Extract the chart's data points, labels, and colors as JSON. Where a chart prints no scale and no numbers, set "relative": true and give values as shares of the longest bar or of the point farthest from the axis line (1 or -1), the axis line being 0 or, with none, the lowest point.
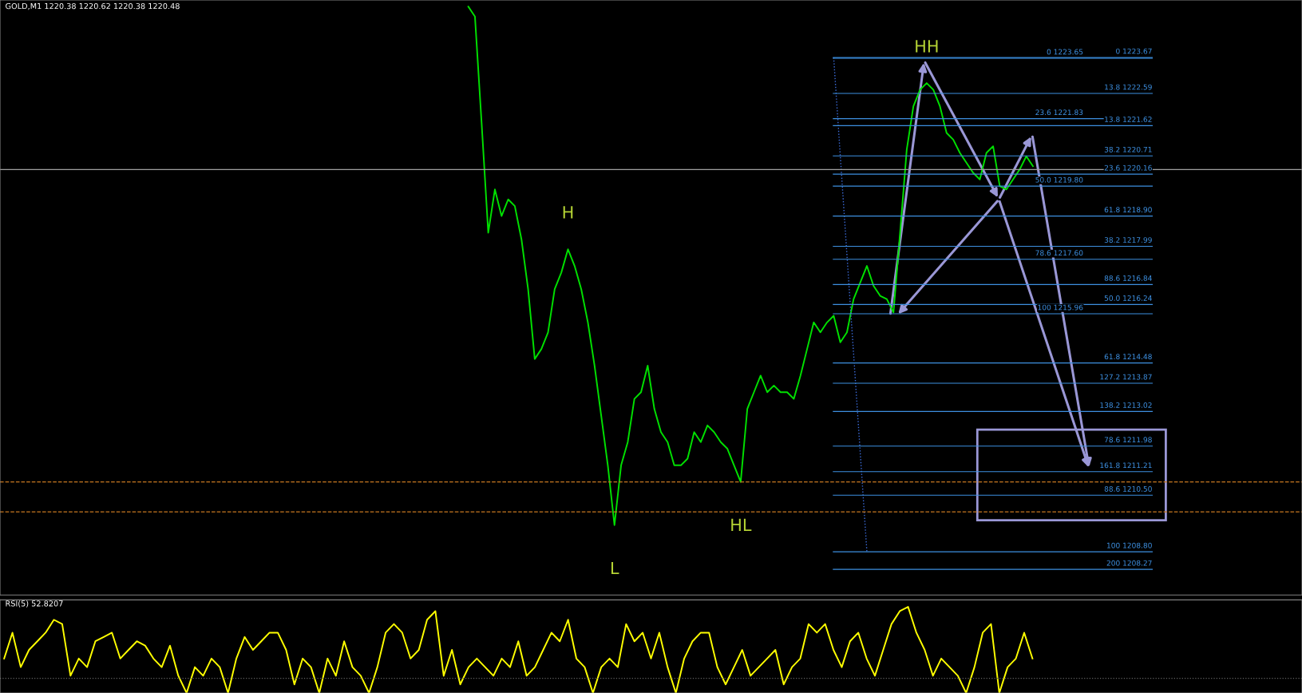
{
  "chart_data": [
    {
      "type": "line",
      "title": "GOLD,M1 1220.38 1220.62 1220.38 1220.48",
      "ylim": [
        1207.5,
        1225.4
      ],
      "categories": [
        null,
        null,
        null,
        null,
        null,
        null,
        null,
        null,
        null,
        null,
        null,
        null,
        null,
        null,
        null,
        null,
        null,
        null,
        null,
        null,
        null,
        null,
        null,
        null,
        null,
        null,
        null,
        null,
        null,
        null,
        null,
        null,
        null,
        null,
        null,
        null,
        null,
        null,
        null,
        null,
        null,
        null,
        null,
        null,
        null,
        null,
        null,
        null,
        null,
        null,
        null,
        null,
        null,
        null,
        null,
        null,
        null,
        null,
        null,
        null,
        null,
        null,
        null,
        null,
        null,
        null,
        null,
        null,
        null,
        null,
        null,
        null,
        null,
        null,
        null,
        null,
        null,
        null,
        null,
        null,
        null,
        null,
        null,
        null,
        null,
        null,
        null,
        null,
        null,
        null,
        null,
        null,
        null,
        null,
        null,
        null,
        null,
        null,
        null,
        null,
        null,
        null,
        null,
        null,
        null,
        null,
        null,
        null,
        null,
        null,
        null,
        null,
        null,
        null,
        null,
        null,
        null,
        null,
        null,
        null,
        null,
        null,
        null,
        null,
        null,
        null,
        null,
        null,
        null,
        null,
        null,
        null,
        null,
        null,
        null,
        null,
        null,
        null,
        null,
        null,
        null,
        null,
        null,
        null,
        null,
        null,
        null,
        null,
        null,
        null,
        null,
        null,
        null,
        null,
        null,
        null,
        null,
        null,
        null,
        null,
        null,
        null,
        null,
        null,
        null,
        null,
        null,
        null,
        null,
        null,
        null,
        null,
        null,
        null,
        null,
        null,
        null,
        null,
        null,
        null,
        null,
        null,
        null,
        null,
        null,
        null,
        null,
        null,
        null,
        null,
        null,
        null,
        null,
        null,
        null,
        null
      ],
      "series": [
        {
          "color": "#00e000",
          "values": [
            null,
            null,
            null,
            null,
            null,
            null,
            null,
            null,
            null,
            null,
            null,
            null,
            null,
            null,
            null,
            null,
            null,
            null,
            null,
            null,
            null,
            null,
            null,
            null,
            null,
            null,
            null,
            null,
            null,
            null,
            null,
            null,
            null,
            null,
            null,
            null,
            null,
            null,
            null,
            null,
            null,
            null,
            null,
            null,
            null,
            null,
            null,
            null,
            null,
            null,
            null,
            null,
            null,
            null,
            null,
            null,
            null,
            null,
            null,
            null,
            null,
            null,
            null,
            null,
            null,
            null,
            null,
            null,
            null,
            null,
            1225.2,
            1224.9,
            1221.7,
            1218.4,
            1219.7,
            1218.9,
            1219.4,
            1219.2,
            1218.2,
            1216.7,
            1214.6,
            1214.9,
            1215.4,
            1216.7,
            1217.2,
            1217.9,
            1217.4,
            1216.7,
            1215.7,
            1214.4,
            1212.9,
            1211.4,
            1209.6,
            1211.4,
            1212.1,
            1213.4,
            1213.6,
            1214.4,
            1213.1,
            1212.4,
            1212.1,
            1211.4,
            1211.4,
            1211.6,
            1212.4,
            1212.1,
            1212.6,
            1212.4,
            1212.1,
            1211.9,
            1211.4,
            1210.9,
            1213.1,
            1213.6,
            1214.1,
            1213.6,
            1213.8,
            1213.6,
            1213.6,
            1213.4,
            1214.1,
            1214.9,
            1215.7,
            1215.4,
            1215.7,
            1215.9,
            1215.1,
            1215.4,
            1216.4,
            1216.9,
            1217.4,
            1216.8,
            1216.5,
            1216.4,
            1216.0,
            1218.4,
            1220.9,
            1222.2,
            1222.7,
            1222.9,
            1222.7,
            1222.2,
            1221.4,
            1221.2,
            1220.8,
            1220.5,
            1220.2,
            1220.0,
            1220.8,
            1221.0,
            1219.8,
            1219.7,
            1220.0,
            1220.3,
            1220.7,
            1220.4,
            null,
            null,
            null,
            null,
            null,
            null,
            null,
            null,
            null,
            null,
            null,
            null,
            null,
            null,
            null,
            null,
            null,
            null,
            null,
            null,
            null,
            null,
            null,
            null,
            null,
            null,
            null,
            null,
            null,
            null,
            null,
            null,
            null,
            null,
            null,
            null,
            null,
            null,
            null,
            null
          ],
          "value_labels": [
            null,
            null,
            null,
            null,
            null,
            null,
            null,
            null,
            null,
            null,
            null,
            null,
            null,
            null,
            null,
            null,
            null,
            null,
            null,
            null,
            null,
            null,
            null,
            null,
            null,
            null,
            null,
            null,
            null,
            null,
            null,
            null,
            null,
            null,
            null,
            null,
            null,
            null,
            null,
            null,
            null,
            null,
            null,
            null,
            null,
            null,
            null,
            null,
            null,
            null,
            null,
            null,
            null,
            null,
            null,
            null,
            null,
            null,
            null,
            null,
            null,
            null,
            null,
            null,
            null,
            null,
            null,
            null,
            null,
            null,
            null,
            null,
            null,
            null,
            null,
            null,
            null,
            null,
            null,
            null,
            null,
            null,
            null,
            null,
            null,
            "H",
            null,
            null,
            null,
            null,
            null,
            null,
            "L",
            null,
            null,
            null,
            null,
            null,
            null,
            null,
            null,
            null,
            null,
            null,
            null,
            null,
            null,
            null,
            null,
            null,
            null,
            "HL",
            null,
            null,
            null,
            null,
            null,
            null,
            null,
            null,
            null,
            null,
            null,
            null,
            null,
            null,
            null,
            null,
            null,
            null,
            null,
            null,
            null,
            null,
            null,
            null,
            null,
            null,
            null,
            "HH",
            null,
            null,
            null,
            null,
            null,
            null,
            null,
            null,
            null,
            null,
            null,
            null,
            null,
            null,
            null,
            null,
            null,
            null,
            null,
            null,
            null,
            null,
            null,
            null,
            null,
            null,
            null,
            null,
            null,
            null,
            null,
            null,
            null,
            null,
            null,
            null,
            null,
            null,
            null,
            null,
            null,
            null,
            null,
            null,
            null,
            null,
            null,
            null,
            null,
            null,
            null,
            null,
            null,
            null,
            null,
            null
          ]
        },
        {
          "color": "#3d6fe0",
          "line_style": "dotted",
          "values": [
            null,
            null,
            null,
            null,
            null,
            null,
            null,
            null,
            null,
            null,
            null,
            null,
            null,
            null,
            null,
            null,
            null,
            null,
            null,
            null,
            null,
            null,
            null,
            null,
            null,
            null,
            null,
            null,
            null,
            null,
            null,
            null,
            null,
            null,
            null,
            null,
            null,
            null,
            null,
            null,
            null,
            null,
            null,
            null,
            null,
            null,
            null,
            null,
            null,
            null,
            null,
            null,
            null,
            null,
            null,
            null,
            null,
            null,
            null,
            null,
            null,
            null,
            null,
            null,
            null,
            null,
            null,
            null,
            null,
            null,
            null,
            null,
            null,
            null,
            null,
            null,
            null,
            null,
            null,
            null,
            null,
            null,
            null,
            null,
            null,
            null,
            null,
            null,
            null,
            null,
            null,
            null,
            null,
            null,
            null,
            null,
            null,
            null,
            null,
            null,
            null,
            null,
            null,
            null,
            null,
            null,
            null,
            null,
            null,
            null,
            null,
            null,
            null,
            null,
            null,
            null,
            null,
            null,
            null,
            null,
            null,
            null,
            null,
            null,
            null,
            1223.67,
            null,
            null,
            null,
            null,
            1208.8,
            null,
            null,
            null,
            null,
            null,
            null,
            null,
            null,
            null,
            null,
            null,
            null,
            null,
            null,
            null,
            null,
            null,
            null,
            null,
            null,
            null,
            null,
            null,
            null,
            null,
            null,
            null,
            null,
            null,
            null,
            null,
            null,
            null,
            null,
            null,
            null,
            null,
            null,
            null,
            null,
            null,
            null,
            null,
            null,
            null,
            null,
            null,
            null,
            null,
            null,
            null,
            null,
            null,
            null,
            null,
            null,
            null,
            null,
            null,
            null,
            null,
            null,
            null,
            null,
            null
          ]
        }
      ],
      "ref_lines": [
        {
          "axis": "y",
          "value": 1220.3,
          "color": "#a0a0a0",
          "line_style": "solid"
        },
        {
          "axis": "y",
          "value": 1210.9,
          "color": "#c87820",
          "line_style": "dashed"
        },
        {
          "axis": "y",
          "value": 1210.0,
          "color": "#c87820",
          "line_style": "dashed"
        },
        {
          "axis": "y",
          "value": 1223.67,
          "label": "0 1223.67",
          "color": "#3d8fe0",
          "line_style": "solid"
        },
        {
          "axis": "y",
          "value": 1221.62,
          "label": "13.8 1221.62",
          "color": "#3d8fe0",
          "line_style": "solid"
        },
        {
          "axis": "y",
          "value": 1220.16,
          "label": "23.6 1220.16",
          "color": "#3d8fe0",
          "line_style": "solid"
        },
        {
          "axis": "y",
          "value": 1217.99,
          "label": "38.2 1217.99",
          "color": "#3d8fe0",
          "line_style": "solid"
        },
        {
          "axis": "y",
          "value": 1216.24,
          "label": "50.0 1216.24",
          "color": "#3d8fe0",
          "line_style": "solid"
        },
        {
          "axis": "y",
          "value": 1214.48,
          "label": "61.8 1214.48",
          "color": "#3d8fe0",
          "line_style": "solid"
        },
        {
          "axis": "y",
          "value": 1211.98,
          "label": "78.6 1211.98",
          "color": "#3d8fe0",
          "line_style": "solid"
        },
        {
          "axis": "y",
          "value": 1210.5,
          "label": "88.6 1210.50",
          "color": "#3d8fe0",
          "line_style": "solid"
        },
        {
          "axis": "y",
          "value": 1208.8,
          "label": "100 1208.80",
          "color": "#3d8fe0",
          "line_style": "solid"
        },
        {
          "axis": "y",
          "value": 1223.65,
          "label": "0 1223.65",
          "color": "#3d8fe0",
          "line_style": "solid"
        },
        {
          "axis": "y",
          "value": 1222.59,
          "label": "13.8 1222.59",
          "color": "#3d8fe0",
          "line_style": "solid"
        },
        {
          "axis": "y",
          "value": 1221.83,
          "label": "23.6 1221.83",
          "color": "#3d8fe0",
          "line_style": "solid"
        },
        {
          "axis": "y",
          "value": 1220.71,
          "label": "38.2 1220.71",
          "color": "#3d8fe0",
          "line_style": "solid"
        },
        {
          "axis": "y",
          "value": 1219.8,
          "label": "50.0 1219.80",
          "color": "#3d8fe0",
          "line_style": "solid"
        },
        {
          "axis": "y",
          "value": 1218.9,
          "label": "61.8 1218.90",
          "color": "#3d8fe0",
          "line_style": "solid"
        },
        {
          "axis": "y",
          "value": 1217.6,
          "label": "78.6 1217.60",
          "color": "#3d8fe0",
          "line_style": "solid"
        },
        {
          "axis": "y",
          "value": 1216.84,
          "label": "88.6 1216.84",
          "color": "#3d8fe0",
          "line_style": "solid"
        },
        {
          "axis": "y",
          "value": 1215.96,
          "label": "100 1215.96",
          "color": "#3d8fe0",
          "line_style": "solid"
        },
        {
          "axis": "y",
          "value": 1213.87,
          "label": "127.2 1213.87",
          "color": "#3d8fe0",
          "line_style": "solid"
        },
        {
          "axis": "y",
          "value": 1213.02,
          "label": "138.2 1213.02",
          "color": "#3d8fe0",
          "line_style": "solid"
        },
        {
          "axis": "y",
          "value": 1211.21,
          "label": "161.8 1211.21",
          "color": "#3d8fe0",
          "line_style": "solid"
        },
        {
          "axis": "y",
          "value": 1208.27,
          "label": "200 1208.27",
          "color": "#3d8fe0",
          "line_style": "solid"
        }
      ]
    },
    {
      "type": "line",
      "title": "RSI(5) 52.8207",
      "relative": true,
      "categories": [
        null,
        null,
        null,
        null,
        null,
        null,
        null,
        null,
        null,
        null,
        null,
        null,
        null,
        null,
        null,
        null,
        null,
        null,
        null,
        null,
        null,
        null,
        null,
        null,
        null,
        null,
        null,
        null,
        null,
        null,
        null,
        null,
        null,
        null,
        null,
        null,
        null,
        null,
        null,
        null,
        null,
        null,
        null,
        null,
        null,
        null,
        null,
        null,
        null,
        null,
        null,
        null,
        null,
        null,
        null,
        null,
        null,
        null,
        null,
        null,
        null,
        null,
        null,
        null,
        null,
        null,
        null,
        null,
        null,
        null,
        null,
        null,
        null,
        null,
        null,
        null,
        null,
        null,
        null,
        null,
        null,
        null,
        null,
        null,
        null,
        null,
        null,
        null,
        null,
        null,
        null,
        null,
        null,
        null,
        null,
        null,
        null,
        null,
        null,
        null,
        null,
        null,
        null,
        null,
        null,
        null,
        null,
        null,
        null,
        null,
        null,
        null,
        null,
        null,
        null,
        null,
        null,
        null,
        null,
        null,
        null,
        null,
        null,
        null,
        null,
        null,
        null,
        null,
        null,
        null,
        null,
        null,
        null,
        null,
        null,
        null,
        null,
        null,
        null,
        null,
        null,
        null,
        null,
        null,
        null,
        null,
        null,
        null,
        null,
        null,
        null,
        null,
        null,
        null,
        null,
        null,
        null
      ],
      "series": [
        {
          "color": "#ffff00",
          "values": [
            0.4,
            0.7,
            0.3,
            0.5,
            0.6,
            0.7,
            0.85,
            0.8,
            0.2,
            0.4,
            0.3,
            0.6,
            0.65,
            0.7,
            0.4,
            0.5,
            0.6,
            0.55,
            0.4,
            0.3,
            0.55,
            0.2,
            0.0,
            0.3,
            0.2,
            0.4,
            0.3,
            0.0,
            0.4,
            0.65,
            0.5,
            0.6,
            0.7,
            0.7,
            0.5,
            0.1,
            0.4,
            0.3,
            0.0,
            0.4,
            0.2,
            0.6,
            0.3,
            0.2,
            0.0,
            0.3,
            0.7,
            0.8,
            0.7,
            0.4,
            0.5,
            0.85,
            0.95,
            0.2,
            0.5,
            0.1,
            0.3,
            0.4,
            0.3,
            0.2,
            0.4,
            0.3,
            0.6,
            0.2,
            0.3,
            0.5,
            0.7,
            0.6,
            0.85,
            0.4,
            0.3,
            0.0,
            0.3,
            0.4,
            0.3,
            0.8,
            0.6,
            0.7,
            0.4,
            0.7,
            0.3,
            0.0,
            0.4,
            0.6,
            0.7,
            0.7,
            0.3,
            0.1,
            0.3,
            0.5,
            0.2,
            0.3,
            0.4,
            0.5,
            0.1,
            0.3,
            0.4,
            0.8,
            0.7,
            0.8,
            0.5,
            0.3,
            0.6,
            0.7,
            0.4,
            0.2,
            0.5,
            0.8,
            0.95,
            1.0,
            0.7,
            0.5,
            0.2,
            0.4,
            0.3,
            0.2,
            0.0,
            0.3,
            0.7,
            0.8,
            0.0,
            0.3,
            0.4,
            0.7,
            0.4,
            null,
            null,
            null,
            null,
            null,
            null,
            null,
            null,
            null,
            null,
            null,
            null,
            null,
            null,
            null,
            null,
            null,
            null,
            null,
            null,
            null,
            null,
            null,
            null,
            null,
            null,
            null,
            null,
            null,
            null,
            null,
            null
          ]
        }
      ],
      "ref_lines": [
        {
          "axis": "y",
          "value": 0.17,
          "color": "#606060",
          "line_style": "dotted"
        }
      ]
    }
  ]
}
